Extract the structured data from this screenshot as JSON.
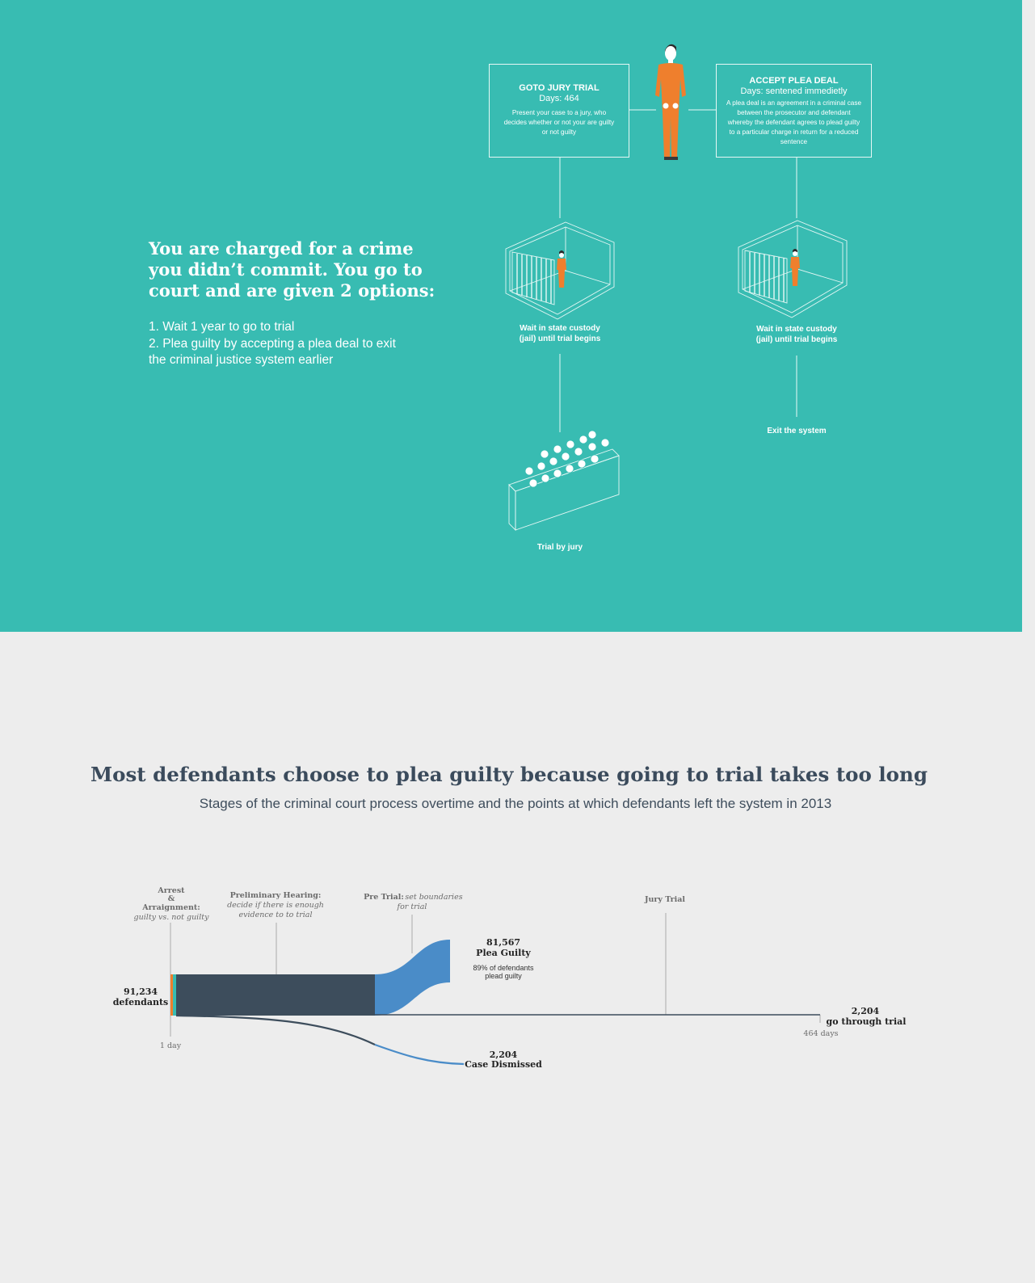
{
  "colors": {
    "teal": "#38bcb2",
    "orange": "#ef7f2d",
    "dark_slate": "#3d4d5c",
    "blue": "#4a8cc8",
    "light_gray": "#ededed"
  },
  "scenario": {
    "title": "You are charged for a crime you didn’t commit. You go to court and are given 2 options:",
    "options": [
      "1. Wait 1 year to go to trial",
      "2. Plea guilty by accepting a plea deal to exit",
      "the criminal justice system earlier"
    ]
  },
  "jury_option": {
    "title": "GOTO JURY TRIAL",
    "days": "Days: 464",
    "description": "Present your case to a jury, who decides whether or not your are guilty or not guilty",
    "custody_label_1": "Wait in state custody",
    "custody_label_2": "(jail) until trial begins",
    "outcome_label": "Trial by jury",
    "icons": [
      "defendant-icon",
      "jail-cell-icon",
      "jury-box-icon"
    ]
  },
  "plea_option": {
    "title": "ACCEPT PLEA DEAL",
    "days": "Days: sentened immedietly",
    "description": "A plea deal is an agreement in a criminal case between the prosecutor and defendant whereby the defendant agrees to plead guilty to a particular charge in return for a reduced sentence",
    "custody_label_1": "Wait in state custody",
    "custody_label_2": "(jail) until trial begins",
    "outcome_label": "Exit the system"
  },
  "chart": {
    "title": "Most defendants choose to plea guilty because going to trial takes too long",
    "subtitle": "Stages of the criminal  court process overtime and the points at which defendants left the system in 2013"
  },
  "chart_data": {
    "type": "sankey",
    "year": 2013,
    "stages": [
      {
        "name": "Arrest & Arraignment:",
        "note": "guilty vs. not guilty",
        "lines": [
          "Arrest",
          "&",
          "Arraignment:"
        ]
      },
      {
        "name": "Preliminary Hearing:",
        "note": "decide if there is enough evidence to to trial",
        "note_lines": [
          "decide if there is enough",
          "evidence to to trial"
        ]
      },
      {
        "name": "Pre Trial:",
        "note": "set boundaries for trial",
        "note_lines": [
          "set boundaries",
          "for trial"
        ]
      },
      {
        "name": "Jury Trial",
        "note": ""
      }
    ],
    "start": {
      "value": "91,234",
      "label": "defendants",
      "day_label": "1 day"
    },
    "end": {
      "day_label": "464 days"
    },
    "flows": [
      {
        "value": "81,567",
        "label": "Plea Guilty",
        "note": "89% of defendants",
        "note2": "plead guilty",
        "count": 81567
      },
      {
        "value": "2,204",
        "label": "Case Dismissed",
        "count": 2204
      },
      {
        "value": "2,204",
        "label": "go through trial",
        "count": 2204
      }
    ]
  }
}
